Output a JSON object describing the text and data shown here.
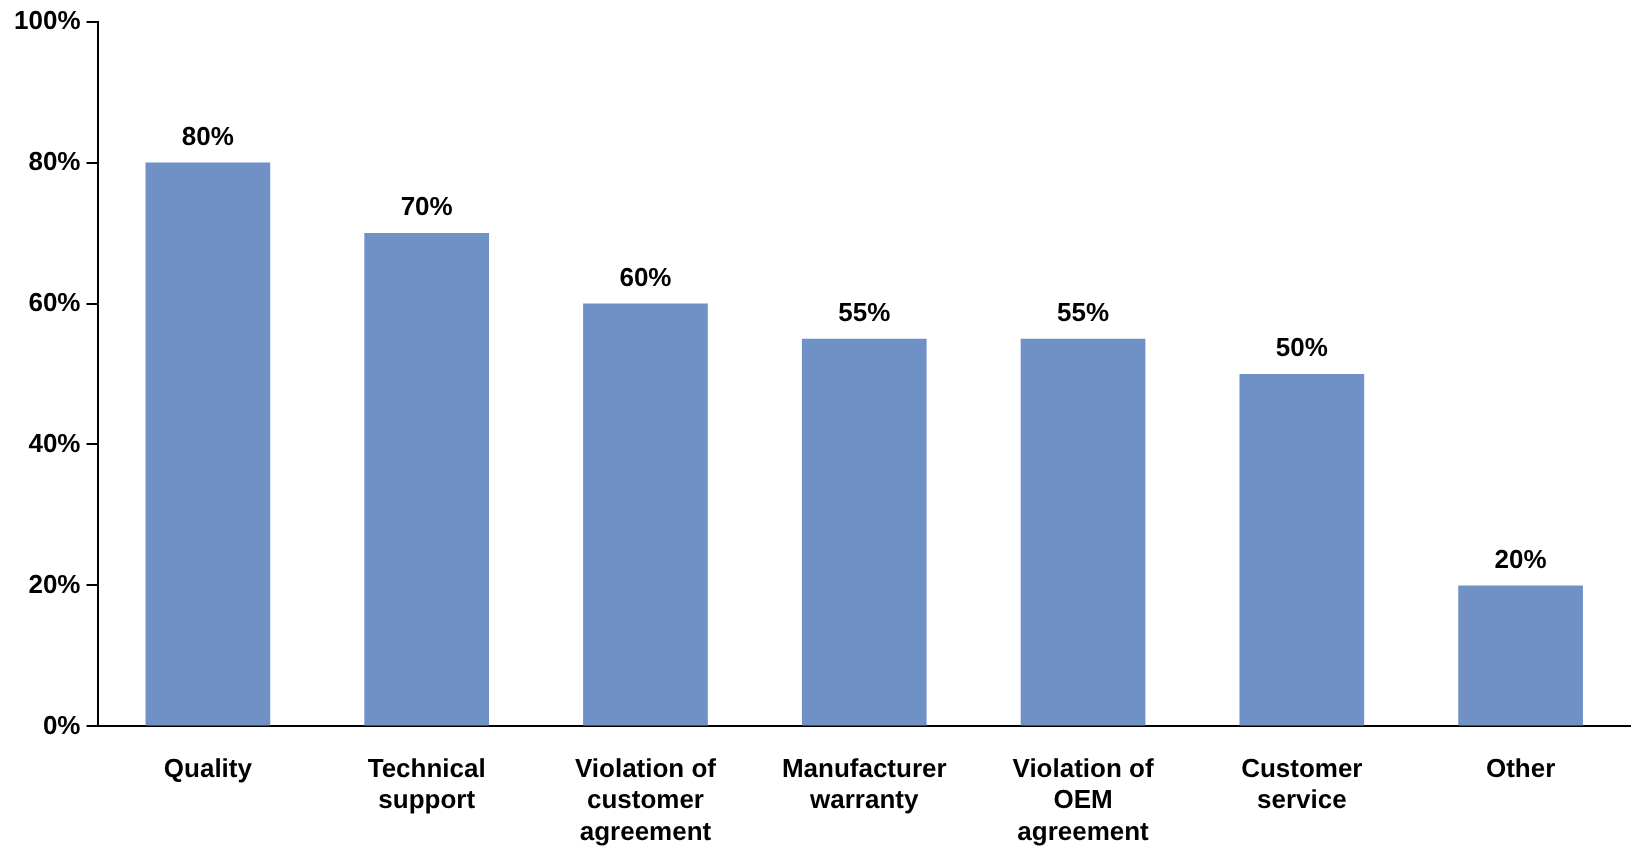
{
  "chart_data": {
    "type": "bar",
    "categories": [
      "Quality",
      "Technical support",
      "Violation of customer agreement",
      "Manufacturer warranty",
      "Violation of OEM agreement",
      "Customer service",
      "Other"
    ],
    "values": [
      80,
      70,
      60,
      55,
      55,
      50,
      20
    ],
    "color": "#7091c6",
    "ylim": [
      0,
      100
    ],
    "yticks": [
      {
        "value": 0,
        "label": "0%"
      },
      {
        "value": 20,
        "label": "20%"
      },
      {
        "value": 40,
        "label": "40%"
      },
      {
        "value": 60,
        "label": "60%"
      },
      {
        "value": 80,
        "label": "80%"
      },
      {
        "value": 100,
        "label": "100%"
      }
    ],
    "value_labels": [
      "80%",
      "70%",
      "60%",
      "55%",
      "55%",
      "50%",
      "20%"
    ],
    "grid": false,
    "legend": false
  }
}
